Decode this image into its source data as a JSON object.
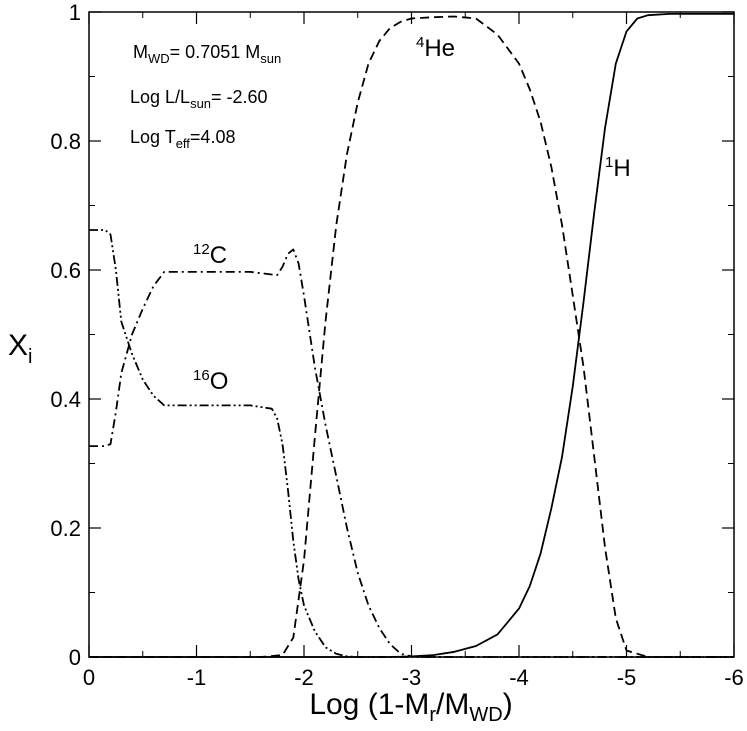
{
  "chart_data": {
    "type": "line",
    "xlabel": {
      "main": "Log (1-M",
      "sub1": "r",
      "mid": "/M",
      "sub2": "WD",
      "end": ")"
    },
    "ylabel": {
      "main": "X",
      "sub": "i"
    },
    "xlim": [
      0,
      -6
    ],
    "ylim": [
      0,
      1
    ],
    "xticks": [
      0,
      -1,
      -2,
      -3,
      -4,
      -5,
      -6
    ],
    "xtick_labels": [
      "0",
      "-1",
      "-2",
      "-3",
      "-4",
      "-5",
      "-6"
    ],
    "yticks": [
      0,
      0.2,
      0.4,
      0.6,
      0.8,
      1
    ],
    "ytick_labels": [
      "0",
      "0.2",
      "0.4",
      "0.6",
      "0.8",
      "1"
    ],
    "grid": false,
    "annotations": {
      "mass": {
        "m": "M",
        "sub_wd": "WD",
        "text": "= 0.7051 M",
        "sub_sun": "sun"
      },
      "lum": {
        "text": "Log L/L",
        "sub": "sun",
        "value": "= -2.60"
      },
      "teff": {
        "text": "Log T",
        "sub": "eff",
        "value": "=4.08"
      }
    },
    "species_labels": {
      "h": {
        "sup": "1",
        "name": "H"
      },
      "he": {
        "sup": "4",
        "name": "He"
      },
      "c": {
        "sup": "12",
        "name": "C"
      },
      "o": {
        "sup": "16",
        "name": "O"
      }
    },
    "series": [
      {
        "species": "1H",
        "style": "solid",
        "x": [
          0,
          -2.8,
          -3.0,
          -3.2,
          -3.4,
          -3.6,
          -3.8,
          -4.0,
          -4.1,
          -4.2,
          -4.3,
          -4.4,
          -4.5,
          -4.6,
          -4.7,
          -4.8,
          -4.9,
          -5.0,
          -5.1,
          -5.2,
          -5.4,
          -6.0
        ],
        "y": [
          0,
          0,
          0.001,
          0.003,
          0.008,
          0.017,
          0.035,
          0.075,
          0.11,
          0.16,
          0.23,
          0.31,
          0.42,
          0.55,
          0.69,
          0.82,
          0.92,
          0.97,
          0.99,
          0.995,
          0.997,
          0.997
        ]
      },
      {
        "species": "4He",
        "style": "dashed",
        "x": [
          0,
          -1.6,
          -1.8,
          -1.9,
          -2.0,
          -2.1,
          -2.2,
          -2.3,
          -2.4,
          -2.5,
          -2.6,
          -2.7,
          -2.8,
          -2.9,
          -3.0,
          -3.2,
          -3.4,
          -3.6,
          -3.8,
          -4.0,
          -4.1,
          -4.2,
          -4.3,
          -4.4,
          -4.5,
          -4.6,
          -4.7,
          -4.8,
          -4.9,
          -5.0,
          -5.2,
          -6.0
        ],
        "y": [
          0,
          0,
          0.003,
          0.03,
          0.15,
          0.34,
          0.52,
          0.67,
          0.78,
          0.86,
          0.92,
          0.955,
          0.975,
          0.985,
          0.99,
          0.992,
          0.993,
          0.99,
          0.965,
          0.92,
          0.88,
          0.83,
          0.76,
          0.67,
          0.56,
          0.45,
          0.31,
          0.17,
          0.06,
          0.01,
          0,
          0
        ]
      },
      {
        "species": "12C",
        "style": "dashdot",
        "x": [
          0,
          -0.15,
          -0.2,
          -0.25,
          -0.3,
          -0.4,
          -0.5,
          -0.6,
          -0.7,
          -1.0,
          -1.5,
          -1.75,
          -1.8,
          -1.85,
          -1.9,
          -1.95,
          -2.0,
          -2.1,
          -2.2,
          -2.3,
          -2.4,
          -2.5,
          -2.6,
          -2.7,
          -2.8,
          -2.9,
          -3.0,
          -3.1,
          -6.0
        ],
        "y": [
          0.327,
          0.327,
          0.33,
          0.38,
          0.44,
          0.5,
          0.54,
          0.575,
          0.597,
          0.597,
          0.597,
          0.592,
          0.605,
          0.625,
          0.632,
          0.61,
          0.56,
          0.45,
          0.36,
          0.28,
          0.2,
          0.13,
          0.08,
          0.045,
          0.02,
          0.005,
          0.001,
          0,
          0
        ]
      },
      {
        "species": "16O",
        "style": "dashdotdot",
        "x": [
          0,
          -0.15,
          -0.2,
          -0.25,
          -0.3,
          -0.4,
          -0.5,
          -0.6,
          -0.7,
          -1.0,
          -1.5,
          -1.7,
          -1.75,
          -1.8,
          -1.85,
          -1.9,
          -1.95,
          -2.0,
          -2.1,
          -2.2,
          -2.3,
          -2.4,
          -2.5,
          -6.0
        ],
        "y": [
          0.662,
          0.662,
          0.655,
          0.6,
          0.52,
          0.47,
          0.43,
          0.405,
          0.39,
          0.39,
          0.39,
          0.385,
          0.37,
          0.33,
          0.26,
          0.18,
          0.12,
          0.08,
          0.04,
          0.015,
          0.005,
          0.001,
          0,
          0
        ]
      }
    ]
  }
}
